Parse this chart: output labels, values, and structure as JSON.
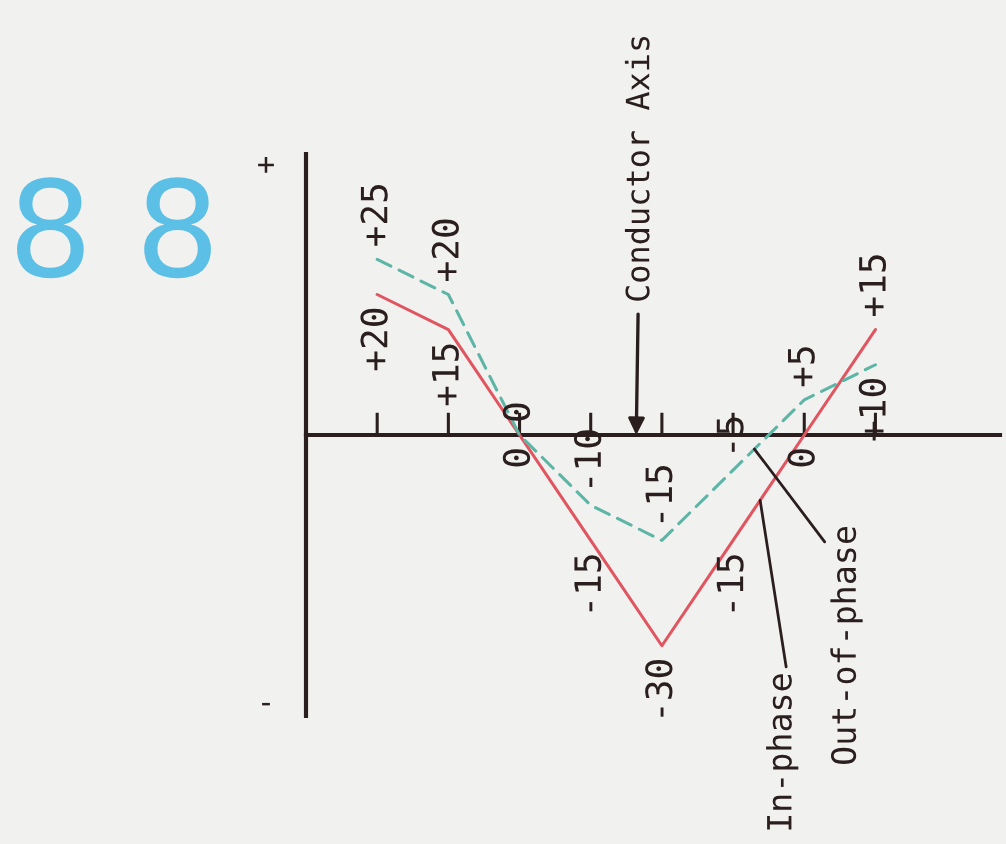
{
  "chart_data": {
    "type": "line",
    "categories": [
      null,
      null,
      null,
      null,
      null,
      null,
      null,
      null
    ],
    "series": [
      {
        "name": "In-phase",
        "color": "#e05560",
        "line_style": "solid",
        "values": [
          20,
          15,
          0,
          -15,
          -30,
          -15,
          0,
          15
        ],
        "value_labels": [
          "+20",
          "+15",
          "0",
          "-15",
          "-30",
          "-15",
          "0",
          "+15"
        ]
      },
      {
        "name": "Out-of-phase",
        "color": "#5db5a6",
        "line_style": "dashed",
        "values": [
          25,
          20,
          0,
          -10,
          -15,
          -5,
          5,
          10
        ],
        "value_labels": [
          "+25",
          "+20",
          "0",
          "-10",
          "-15",
          "-5",
          "+5",
          "+10"
        ]
      }
    ],
    "annotations": [
      "Conductor Axis",
      "8 8",
      "+",
      "-"
    ]
  }
}
